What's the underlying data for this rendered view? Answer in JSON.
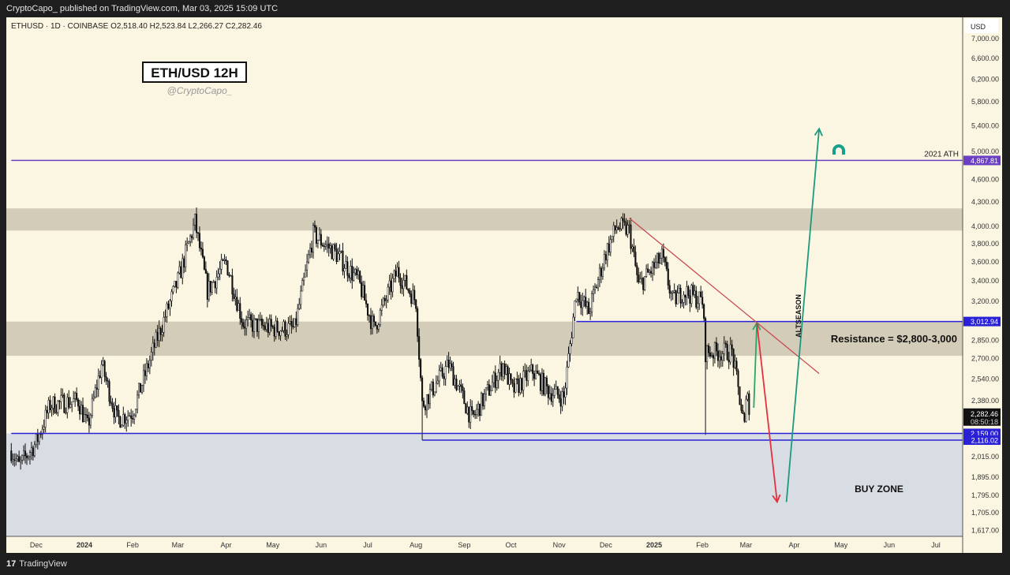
{
  "header": {
    "published": "CryptoCapo_  published on TradingView.com, Mar 03, 2025 15:09 UTC"
  },
  "legend": {
    "symbol_line": "ETHUSD · 1D · COINBASE  O2,518.40  H2,523.84  L2,266.27  C2,282.46"
  },
  "footer": {
    "logo": "17",
    "brand": "TradingView"
  },
  "chart_data": {
    "type": "candlestick",
    "title": "ETH/USD 12H",
    "subtitle": "@CryptoCapo_",
    "currency": "USD",
    "yscale": "log",
    "ylim": [
      1580,
      7300
    ],
    "y_ticks": [
      "7,000.00",
      "6,600.00",
      "6,200.00",
      "5,800.00",
      "5,400.00",
      "5,000.00",
      "4,600.00",
      "4,300.00",
      "4,000.00",
      "3,800.00",
      "3,600.00",
      "3,400.00",
      "3,200.00",
      "2,850.00",
      "2,700.00",
      "2,540.00",
      "2,380.00",
      "2,015.00",
      "1,895.00",
      "1,795.00",
      "1,705.00",
      "1,617.00"
    ],
    "x_ticks": [
      {
        "label": "Dec",
        "date": "2023-12-01",
        "bold": false
      },
      {
        "label": "2024",
        "date": "2024-01-01",
        "bold": true
      },
      {
        "label": "Feb",
        "date": "2024-02-01",
        "bold": false
      },
      {
        "label": "Mar",
        "date": "2024-03-01",
        "bold": false
      },
      {
        "label": "Apr",
        "date": "2024-04-01",
        "bold": false
      },
      {
        "label": "May",
        "date": "2024-05-01",
        "bold": false
      },
      {
        "label": "Jun",
        "date": "2024-06-01",
        "bold": false
      },
      {
        "label": "Jul",
        "date": "2024-07-01",
        "bold": false
      },
      {
        "label": "Aug",
        "date": "2024-08-01",
        "bold": false
      },
      {
        "label": "Sep",
        "date": "2024-09-01",
        "bold": false
      },
      {
        "label": "Oct",
        "date": "2024-10-01",
        "bold": false
      },
      {
        "label": "Nov",
        "date": "2024-11-01",
        "bold": false
      },
      {
        "label": "Dec",
        "date": "2024-12-01",
        "bold": false
      },
      {
        "label": "2025",
        "date": "2025-01-01",
        "bold": true
      },
      {
        "label": "Feb",
        "date": "2025-02-01",
        "bold": false
      },
      {
        "label": "Mar",
        "date": "2025-03-01",
        "bold": false
      },
      {
        "label": "Apr",
        "date": "2025-04-01",
        "bold": false
      },
      {
        "label": "May",
        "date": "2025-05-01",
        "bold": false
      },
      {
        "label": "Jun",
        "date": "2025-06-01",
        "bold": false
      },
      {
        "label": "Jul",
        "date": "2025-07-01",
        "bold": false
      }
    ],
    "close_waypoints": [
      [
        "2023-11-15",
        2050
      ],
      [
        "2023-11-20",
        1960
      ],
      [
        "2023-12-01",
        2100
      ],
      [
        "2023-12-10",
        2350
      ],
      [
        "2023-12-28",
        2380
      ],
      [
        "2024-01-03",
        2200
      ],
      [
        "2024-01-12",
        2650
      ],
      [
        "2024-01-22",
        2250
      ],
      [
        "2024-02-01",
        2300
      ],
      [
        "2024-02-15",
        2800
      ],
      [
        "2024-03-01",
        3400
      ],
      [
        "2024-03-12",
        4050
      ],
      [
        "2024-03-20",
        3300
      ],
      [
        "2024-04-01",
        3600
      ],
      [
        "2024-04-12",
        3000
      ],
      [
        "2024-05-01",
        2950
      ],
      [
        "2024-05-15",
        2950
      ],
      [
        "2024-05-27",
        3900
      ],
      [
        "2024-06-10",
        3700
      ],
      [
        "2024-06-25",
        3400
      ],
      [
        "2024-07-05",
        2950
      ],
      [
        "2024-07-20",
        3500
      ],
      [
        "2024-08-01",
        3200
      ],
      [
        "2024-08-05",
        2350
      ],
      [
        "2024-08-22",
        2650
      ],
      [
        "2024-09-06",
        2250
      ],
      [
        "2024-09-26",
        2650
      ],
      [
        "2024-10-02",
        2450
      ],
      [
        "2024-10-15",
        2600
      ],
      [
        "2024-10-25",
        2450
      ],
      [
        "2024-11-04",
        2400
      ],
      [
        "2024-11-12",
        3300
      ],
      [
        "2024-11-20",
        3100
      ],
      [
        "2024-12-01",
        3700
      ],
      [
        "2024-12-08",
        4000
      ],
      [
        "2024-12-16",
        3950
      ],
      [
        "2024-12-22",
        3350
      ],
      [
        "2025-01-06",
        3650
      ],
      [
        "2025-01-13",
        3200
      ],
      [
        "2025-01-20",
        3300
      ],
      [
        "2025-02-01",
        3200
      ],
      [
        "2025-02-03",
        2750
      ],
      [
        "2025-02-20",
        2750
      ],
      [
        "2025-02-28",
        2200
      ],
      [
        "2025-03-02",
        2500
      ],
      [
        "2025-03-03",
        2282.46
      ]
    ],
    "zones": [
      {
        "name": "upper-supply-zone",
        "from": 3950,
        "to": 4220,
        "color": "#d3ccb8"
      },
      {
        "name": "resistance-zone",
        "from": 2720,
        "to": 3012,
        "color": "#d3ccb8"
      },
      {
        "name": "buy-zone",
        "from": 1580,
        "to": 2159,
        "color": "#d8dce3"
      }
    ],
    "levels": [
      {
        "name": "ath-2021-line",
        "price": 4867.81,
        "label": "4,867.81",
        "text": "2021 ATH",
        "color": "#6a3fc4",
        "start": "2023-11-15"
      },
      {
        "name": "resistance-line",
        "price": 3012.94,
        "label": "3,012.94",
        "color": "#2a20d8",
        "start": "2024-11-12"
      },
      {
        "name": "support-line-upper",
        "price": 2159.0,
        "label": "2,159.00",
        "color": "#2a20d8",
        "start": "2023-11-15"
      },
      {
        "name": "support-line-lower",
        "price": 2116.02,
        "label": "2,116.02",
        "color": "#2a20d8",
        "start": "2024-08-05"
      }
    ],
    "last_price": {
      "label": "2,282.46",
      "countdown": "08:50:18",
      "price": 2282.46
    },
    "trendline": {
      "from": [
        "2024-12-16",
        4100
      ],
      "to": [
        "2025-04-17",
        2580
      ],
      "color": "#c8454a"
    },
    "arrows": [
      {
        "name": "green-up-arrow",
        "from": [
          "2025-03-06",
          2330
        ],
        "to": [
          "2025-03-08",
          3000
        ],
        "color": "#2aa56a"
      },
      {
        "name": "red-down-arrow",
        "from": [
          "2025-03-08",
          3000
        ],
        "to": [
          "2025-03-21",
          1760
        ],
        "color": "#e5303e"
      },
      {
        "name": "teal-altseason-arrow",
        "from": [
          "2025-03-27",
          1760
        ],
        "to": [
          "2025-04-17",
          5350
        ],
        "color": "#1a9a80"
      }
    ],
    "annotations": {
      "altseason": "ALTSEASON",
      "resistance": "Resistance = $2,800-3,000",
      "buy_zone": "BUY ZONE"
    }
  }
}
